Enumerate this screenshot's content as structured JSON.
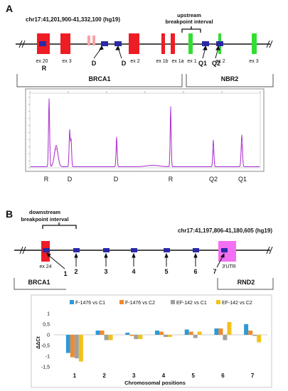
{
  "panelA": {
    "label": "A",
    "coords": "chr17:41,201,900-41,332,100 (hg19)",
    "upstream_label_line1": "upstream",
    "upstream_label_line2": "breakpoint interval",
    "exons": [
      "ex 20",
      "ex 3",
      "ex 2",
      "ex 1b",
      "ex 1a",
      "ex 1",
      "ex 2",
      "ex 3"
    ],
    "probe_markers": [
      "R",
      "D",
      "D",
      "Q1",
      "Q2"
    ],
    "genes": [
      "BRCA1",
      "NBR2"
    ],
    "trace_peak_labels": [
      "R",
      "D",
      "D",
      "R",
      "Q2",
      "Q1"
    ],
    "trace_ticks": [
      "",
      "",
      "",
      "",
      "",
      "",
      ""
    ],
    "trace_y_ticks": [
      "0",
      "100",
      "200",
      "300",
      "400",
      "500",
      "600",
      "700",
      "800",
      "900",
      "1000"
    ]
  },
  "panelB": {
    "label": "B",
    "coords": "chr17:41,197,806-41,180,605 (hg19)",
    "downstream_label_line1": "downstream",
    "downstream_label_line2": "breakpoint interval",
    "exon_left": "ex 24",
    "utr_label": "3'UTR",
    "positions": [
      "1",
      "2",
      "3",
      "4",
      "5",
      "6",
      "7"
    ],
    "genes": [
      "BRCA1",
      "RND2"
    ]
  },
  "chart_data": {
    "type": "bar",
    "categories": [
      "1",
      "2",
      "3",
      "4",
      "5",
      "6",
      "7"
    ],
    "series": [
      {
        "name": "F-1476 vs C1",
        "color": "#2e9ad8",
        "values": [
          -0.85,
          0.2,
          0.1,
          0.2,
          0.25,
          0.3,
          0.5
        ]
      },
      {
        "name": "F-1476 vs C2",
        "color": "#f08a2c",
        "values": [
          -1.05,
          0.2,
          -0.05,
          0.15,
          0.15,
          0.3,
          0.2
        ]
      },
      {
        "name": "EF-142 vs C1",
        "color": "#a0a0a0",
        "values": [
          -1.1,
          -0.25,
          -0.2,
          -0.1,
          -0.15,
          -0.25,
          -0.05
        ]
      },
      {
        "name": "EF-142 vs C2",
        "color": "#f3c21a",
        "values": [
          -1.25,
          -0.25,
          -0.2,
          -0.1,
          0.15,
          0.6,
          -0.35
        ]
      }
    ],
    "ylabel": "ΔΔCt",
    "xlabel": "Chromosomal positions",
    "ylim": [
      -1.5,
      1
    ],
    "yticks": [
      "1",
      "0,5",
      "0",
      "-0,5",
      "-1",
      "-1,5"
    ],
    "grid": false,
    "legend": "top"
  }
}
